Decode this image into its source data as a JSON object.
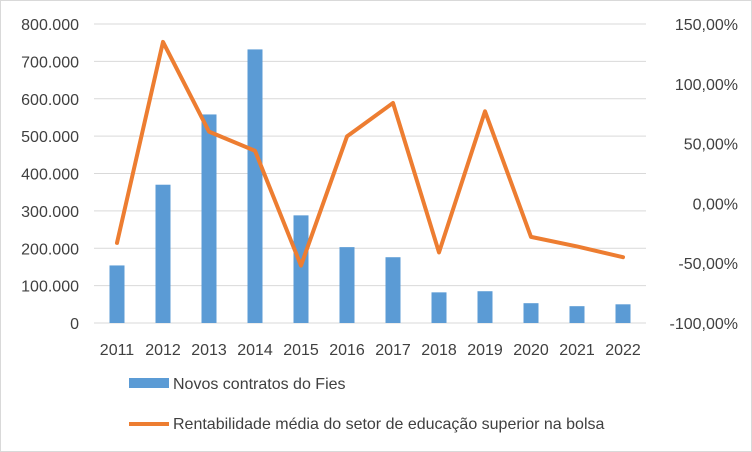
{
  "chart_data": {
    "type": "bar+line",
    "categories": [
      "2011",
      "2012",
      "2013",
      "2014",
      "2015",
      "2016",
      "2017",
      "2018",
      "2019",
      "2020",
      "2021",
      "2022"
    ],
    "series": [
      {
        "name": "Novos contratos do Fies",
        "type": "bar",
        "axis": "left",
        "values": [
          154000,
          370000,
          558000,
          732000,
          288000,
          203000,
          176000,
          82000,
          85000,
          53000,
          45000,
          50000
        ]
      },
      {
        "name": "Rentabilidade média do setor de educação superior na bolsa",
        "type": "line",
        "axis": "right",
        "values": [
          -33,
          135,
          60,
          44,
          -52,
          56,
          84,
          -41,
          77,
          -28,
          -36,
          -45
        ]
      }
    ],
    "y_left": {
      "ylim": [
        0,
        800000
      ],
      "ticks": [
        0,
        100000,
        200000,
        300000,
        400000,
        500000,
        600000,
        700000,
        800000
      ],
      "tick_labels": [
        "0",
        "100.000",
        "200.000",
        "300.000",
        "400.000",
        "500.000",
        "600.000",
        "700.000",
        "800.000"
      ]
    },
    "y_right": {
      "ylim": [
        -100,
        150
      ],
      "ticks": [
        -100,
        -50,
        0,
        50,
        100,
        150
      ],
      "tick_labels": [
        "-100,00%",
        "-50,00%",
        "0,00%",
        "50,00%",
        "100,00%",
        "150,00%"
      ]
    },
    "grid": true,
    "legend": "bottom-left",
    "colors": {
      "bar": "#5b9bd5",
      "line": "#ed7d31",
      "grid": "#d9d9d9",
      "text": "#404040"
    }
  }
}
